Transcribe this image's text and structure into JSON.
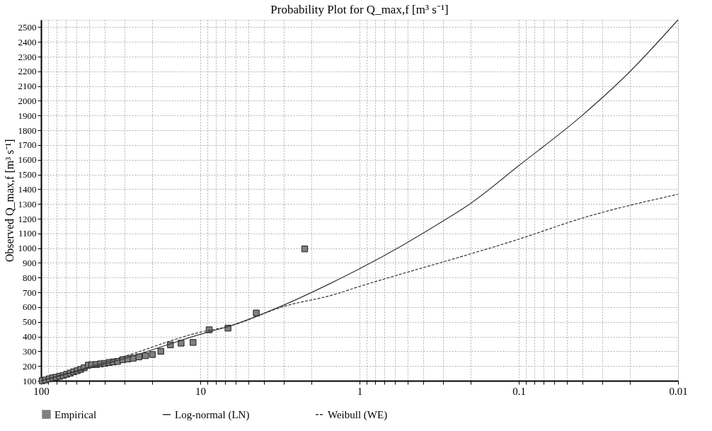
{
  "chart_data": {
    "type": "scatter",
    "title": "Probability Plot for Q_max,f  [m³ s⁻¹]",
    "ylabel": "Observed   Q_max,f  [m³ s⁻¹]",
    "xlim": [
      100,
      0.01
    ],
    "log": "x",
    "xticks": [
      100,
      {
        "value": 90,
        "label": null
      },
      {
        "value": 80,
        "label": null
      },
      {
        "value": 70,
        "label": null
      },
      {
        "value": 60,
        "label": null
      },
      {
        "value": 50,
        "label": null
      },
      {
        "value": 40,
        "label": null
      },
      {
        "value": 30,
        "label": null
      },
      {
        "value": 20,
        "label": null
      },
      10,
      {
        "value": 9,
        "label": null
      },
      {
        "value": 8,
        "label": null
      },
      {
        "value": 7,
        "label": null
      },
      {
        "value": 6,
        "label": null
      },
      {
        "value": 5,
        "label": null
      },
      {
        "value": 4,
        "label": null
      },
      {
        "value": 3,
        "label": null
      },
      {
        "value": 2,
        "label": null
      },
      1,
      {
        "value": 0.9,
        "label": null
      },
      {
        "value": 0.8,
        "label": null
      },
      {
        "value": 0.7,
        "label": null
      },
      {
        "value": 0.6,
        "label": null
      },
      {
        "value": 0.5,
        "label": null
      },
      {
        "value": 0.4,
        "label": null
      },
      {
        "value": 0.3,
        "label": null
      },
      {
        "value": 0.2,
        "label": null
      },
      0.1,
      {
        "value": 0.09,
        "label": null
      },
      {
        "value": 0.08,
        "label": null
      },
      {
        "value": 0.07,
        "label": null
      },
      {
        "value": 0.06,
        "label": null
      },
      {
        "value": 0.05,
        "label": null
      },
      {
        "value": 0.04,
        "label": null
      },
      {
        "value": 0.03,
        "label": null
      },
      {
        "value": 0.02,
        "label": null
      },
      0.01
    ],
    "ylim": [
      100,
      2550
    ],
    "yticks": [
      100,
      200,
      300,
      400,
      500,
      600,
      700,
      800,
      900,
      1000,
      1100,
      1200,
      1300,
      1400,
      1500,
      1600,
      1700,
      1800,
      1900,
      2000,
      2100,
      2200,
      2300,
      2400,
      2500
    ],
    "grid": true,
    "legend": "bottom",
    "series": [
      {
        "name": "Empirical",
        "type": "scatter",
        "marker": "square",
        "color": "#808080",
        "x": [
          98.4,
          93.5,
          88.9,
          84.5,
          80.4,
          76.4,
          72.6,
          69.0,
          65.6,
          62.4,
          59.3,
          56.4,
          53.6,
          50.5,
          48.0,
          45.0,
          42.3,
          39.8,
          37.4,
          35.2,
          33.1,
          30.7,
          28.5,
          26.4,
          24.3,
          22.1,
          20.0,
          17.7,
          15.4,
          13.2,
          11.1,
          8.8,
          6.7,
          4.45,
          2.21
        ],
        "values": [
          100,
          105,
          113,
          120,
          124,
          130,
          136,
          144,
          152,
          161,
          168,
          177,
          188,
          206,
          209,
          210,
          215,
          218,
          224,
          228,
          231,
          243,
          248,
          253,
          262,
          270,
          278,
          300,
          344,
          355,
          360,
          446,
          457,
          560,
          995
        ]
      },
      {
        "name": "Log-normal (LN)",
        "type": "line",
        "line_style": "solid",
        "color": "#333333",
        "x": [
          100,
          60,
          30,
          10,
          6.6,
          2.96,
          1.49,
          1,
          0.538,
          0.3,
          0.2,
          0.1,
          0.0405,
          0.0206,
          0.01
        ],
        "values": [
          100,
          163,
          251,
          415,
          470,
          616,
          766,
          860,
          1019,
          1183,
          1305,
          1560,
          1896,
          2186,
          2550
        ]
      },
      {
        "name": "Weibull (WE)",
        "type": "line",
        "line_style": "dashed",
        "color": "#333333",
        "x": [
          100,
          30,
          10,
          6.6,
          2.96,
          1.49,
          1,
          0.538,
          0.3,
          0.1,
          0.0405,
          0.01
        ],
        "values": [
          100,
          265,
          430,
          470,
          606,
          681,
          740,
          827,
          906,
          1061,
          1202,
          1366
        ]
      }
    ]
  }
}
